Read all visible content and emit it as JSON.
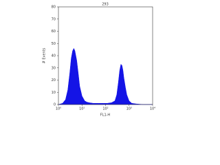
{
  "chart_data": {
    "type": "area",
    "title": "293",
    "x_label": "FL1-H",
    "y_label": "# Events",
    "xscale": "log",
    "x": [
      1,
      1.5,
      2,
      2.5,
      3,
      3.5,
      4,
      4.5,
      5,
      6,
      7,
      8,
      10,
      13,
      16,
      20,
      30,
      50,
      80,
      120,
      180,
      250,
      300,
      350,
      400,
      450,
      500,
      550,
      600,
      700,
      800,
      1000,
      1300,
      2000,
      4000,
      10000
    ],
    "values": [
      0,
      1,
      4,
      12,
      25,
      38,
      44,
      46,
      44,
      36,
      25,
      15,
      7,
      3,
      2,
      1.5,
      1,
      1,
      1,
      1,
      1.5,
      3,
      8,
      18,
      28,
      33,
      32,
      28,
      22,
      14,
      8,
      3,
      1,
      0.5,
      0,
      0
    ],
    "color": "#1414e6",
    "xlim": [
      1,
      10000
    ],
    "xticks": [
      {
        "value": 1,
        "label": "10⁰"
      },
      {
        "value": 10,
        "label": "10¹"
      },
      {
        "value": 100,
        "label": "10²"
      },
      {
        "value": 1000,
        "label": "10³"
      },
      {
        "value": 10000,
        "label": "10⁴"
      }
    ],
    "ylim": [
      0,
      80
    ],
    "yticks": [
      0,
      10,
      20,
      30,
      40,
      50,
      60,
      70,
      80
    ]
  }
}
